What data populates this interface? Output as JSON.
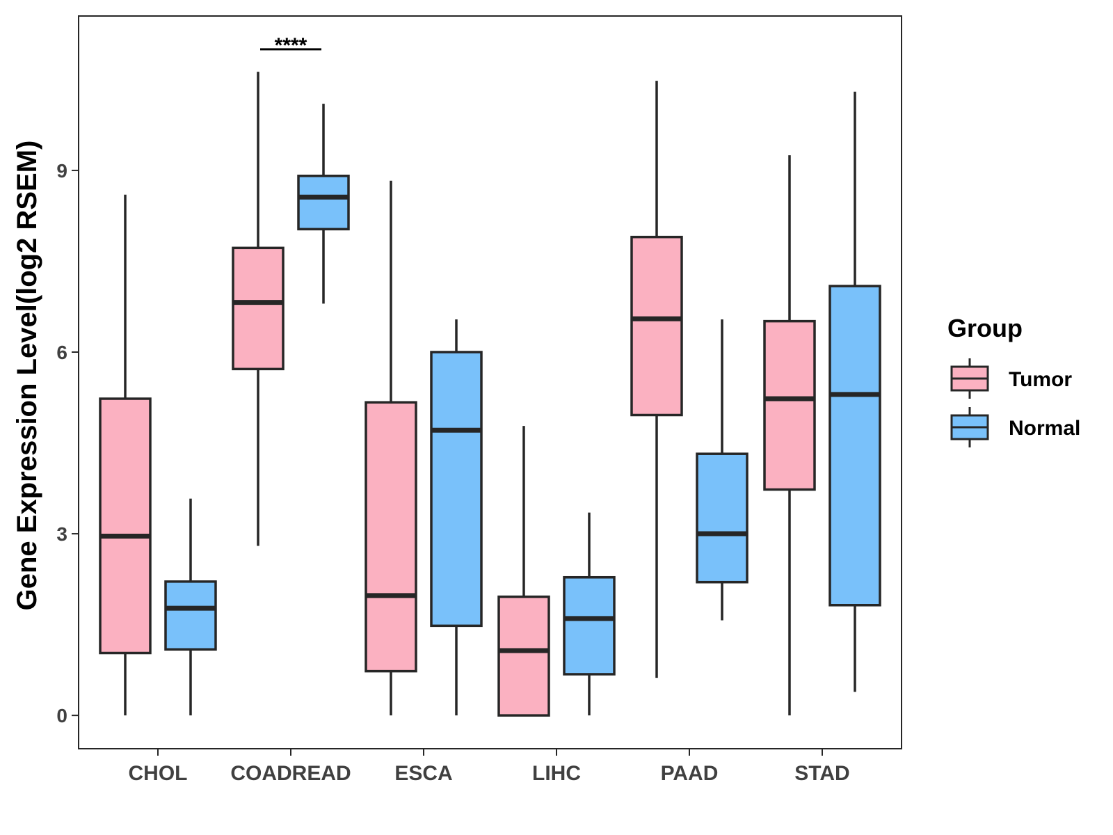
{
  "chart_data": {
    "type": "boxplot",
    "title": "",
    "xlabel": "",
    "ylabel": "Gene Expression Level(log2 RSEM)",
    "ylim": [
      -0.55,
      11.55
    ],
    "yticks": [
      0,
      3,
      6,
      9
    ],
    "grid": false,
    "legend": {
      "title": "Group",
      "position": "right",
      "entries": [
        "Tumor",
        "Normal"
      ]
    },
    "colors": {
      "Tumor": "#FBB1C1",
      "Normal": "#79C1FA",
      "stroke": "#262626",
      "frame": "#262626"
    },
    "categories": [
      "CHOL",
      "COADREAD",
      "ESCA",
      "LIHC",
      "PAAD",
      "STAD"
    ],
    "series": [
      {
        "name": "Tumor",
        "boxes": [
          {
            "min": 0.0,
            "q1": 1.03,
            "median": 2.96,
            "q3": 5.23,
            "max": 8.6
          },
          {
            "min": 2.8,
            "q1": 5.72,
            "median": 6.82,
            "q3": 7.72,
            "max": 10.63
          },
          {
            "min": 0.0,
            "q1": 0.73,
            "median": 1.98,
            "q3": 5.17,
            "max": 8.83
          },
          {
            "min": 0.0,
            "q1": 0.0,
            "median": 1.07,
            "q3": 1.96,
            "max": 4.78
          },
          {
            "min": 0.62,
            "q1": 4.96,
            "median": 6.55,
            "q3": 7.9,
            "max": 10.48
          },
          {
            "min": 0.0,
            "q1": 3.73,
            "median": 5.23,
            "q3": 6.51,
            "max": 9.25
          }
        ]
      },
      {
        "name": "Normal",
        "boxes": [
          {
            "min": 0.0,
            "q1": 1.09,
            "median": 1.77,
            "q3": 2.21,
            "max": 3.58
          },
          {
            "min": 6.8,
            "q1": 8.03,
            "median": 8.56,
            "q3": 8.91,
            "max": 10.1
          },
          {
            "min": 0.0,
            "q1": 1.48,
            "median": 4.71,
            "q3": 6.0,
            "max": 6.54
          },
          {
            "min": 0.0,
            "q1": 0.68,
            "median": 1.6,
            "q3": 2.28,
            "max": 3.35
          },
          {
            "min": 1.57,
            "q1": 2.2,
            "median": 3.0,
            "q3": 4.32,
            "max": 6.54
          },
          {
            "min": 0.39,
            "q1": 1.82,
            "median": 5.3,
            "q3": 7.09,
            "max": 10.3
          }
        ]
      }
    ],
    "annotations": [
      {
        "category": "COADREAD",
        "text": "****",
        "y": 11.0
      }
    ]
  }
}
